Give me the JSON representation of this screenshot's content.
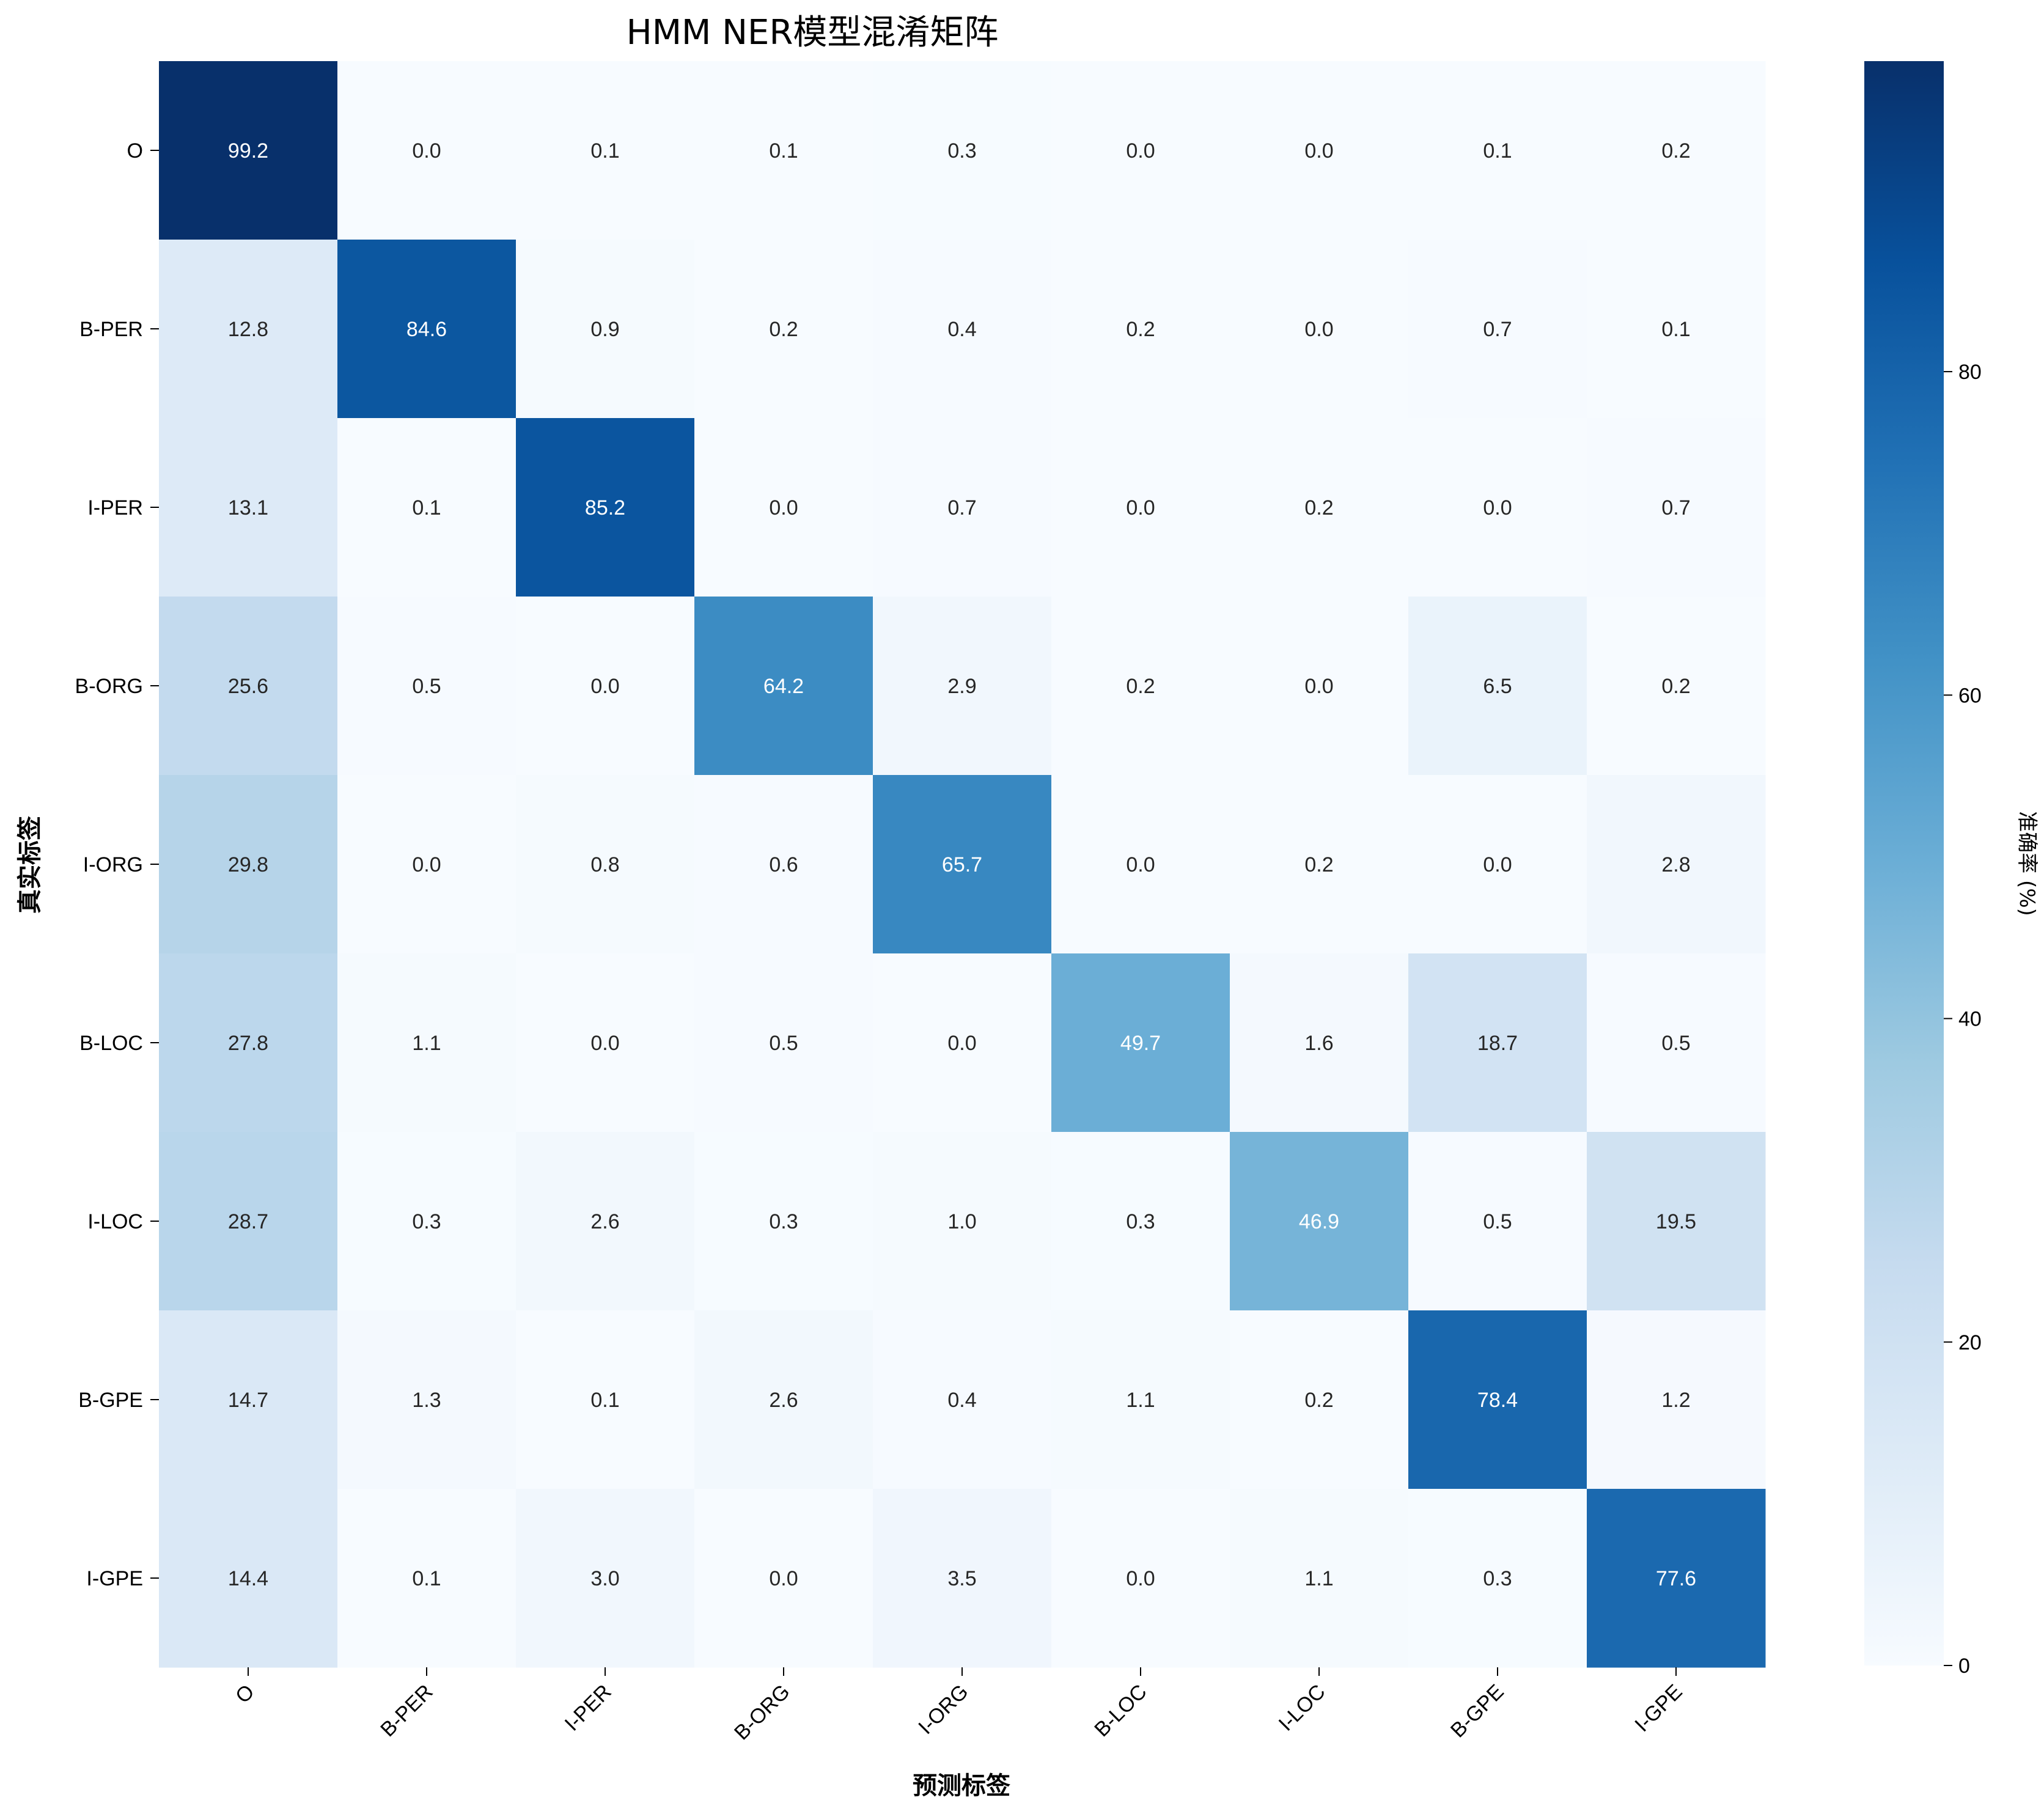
{
  "chart_data": {
    "type": "heatmap",
    "title": "HMM NER模型混淆矩阵",
    "xlabel": "预测标签",
    "ylabel": "真实标签",
    "x_categories": [
      "O",
      "B-PER",
      "I-PER",
      "B-ORG",
      "I-ORG",
      "B-LOC",
      "I-LOC",
      "B-GPE",
      "I-GPE"
    ],
    "y_categories": [
      "O",
      "B-PER",
      "I-PER",
      "B-ORG",
      "I-ORG",
      "B-LOC",
      "I-LOC",
      "B-GPE",
      "I-GPE"
    ],
    "values": [
      [
        99.2,
        0.0,
        0.1,
        0.1,
        0.3,
        0.0,
        0.0,
        0.1,
        0.2
      ],
      [
        12.8,
        84.6,
        0.9,
        0.2,
        0.4,
        0.2,
        0.0,
        0.7,
        0.1
      ],
      [
        13.1,
        0.1,
        85.2,
        0.0,
        0.7,
        0.0,
        0.2,
        0.0,
        0.7
      ],
      [
        25.6,
        0.5,
        0.0,
        64.2,
        2.9,
        0.2,
        0.0,
        6.5,
        0.2
      ],
      [
        29.8,
        0.0,
        0.8,
        0.6,
        65.7,
        0.0,
        0.2,
        0.0,
        2.8
      ],
      [
        27.8,
        1.1,
        0.0,
        0.5,
        0.0,
        49.7,
        1.6,
        18.7,
        0.5
      ],
      [
        28.7,
        0.3,
        2.6,
        0.3,
        1.0,
        0.3,
        46.9,
        0.5,
        19.5
      ],
      [
        14.7,
        1.3,
        0.1,
        2.6,
        0.4,
        1.1,
        0.2,
        78.4,
        1.2
      ],
      [
        14.4,
        0.1,
        3.0,
        0.0,
        3.5,
        0.0,
        1.1,
        0.3,
        77.6
      ]
    ],
    "colormap": "Blues",
    "colorbar": {
      "label": "准确率 (%)",
      "range": [
        0,
        99.2
      ],
      "ticks": [
        0,
        20,
        40,
        60,
        80
      ]
    },
    "grid": false,
    "legend": "colorbar-right"
  }
}
